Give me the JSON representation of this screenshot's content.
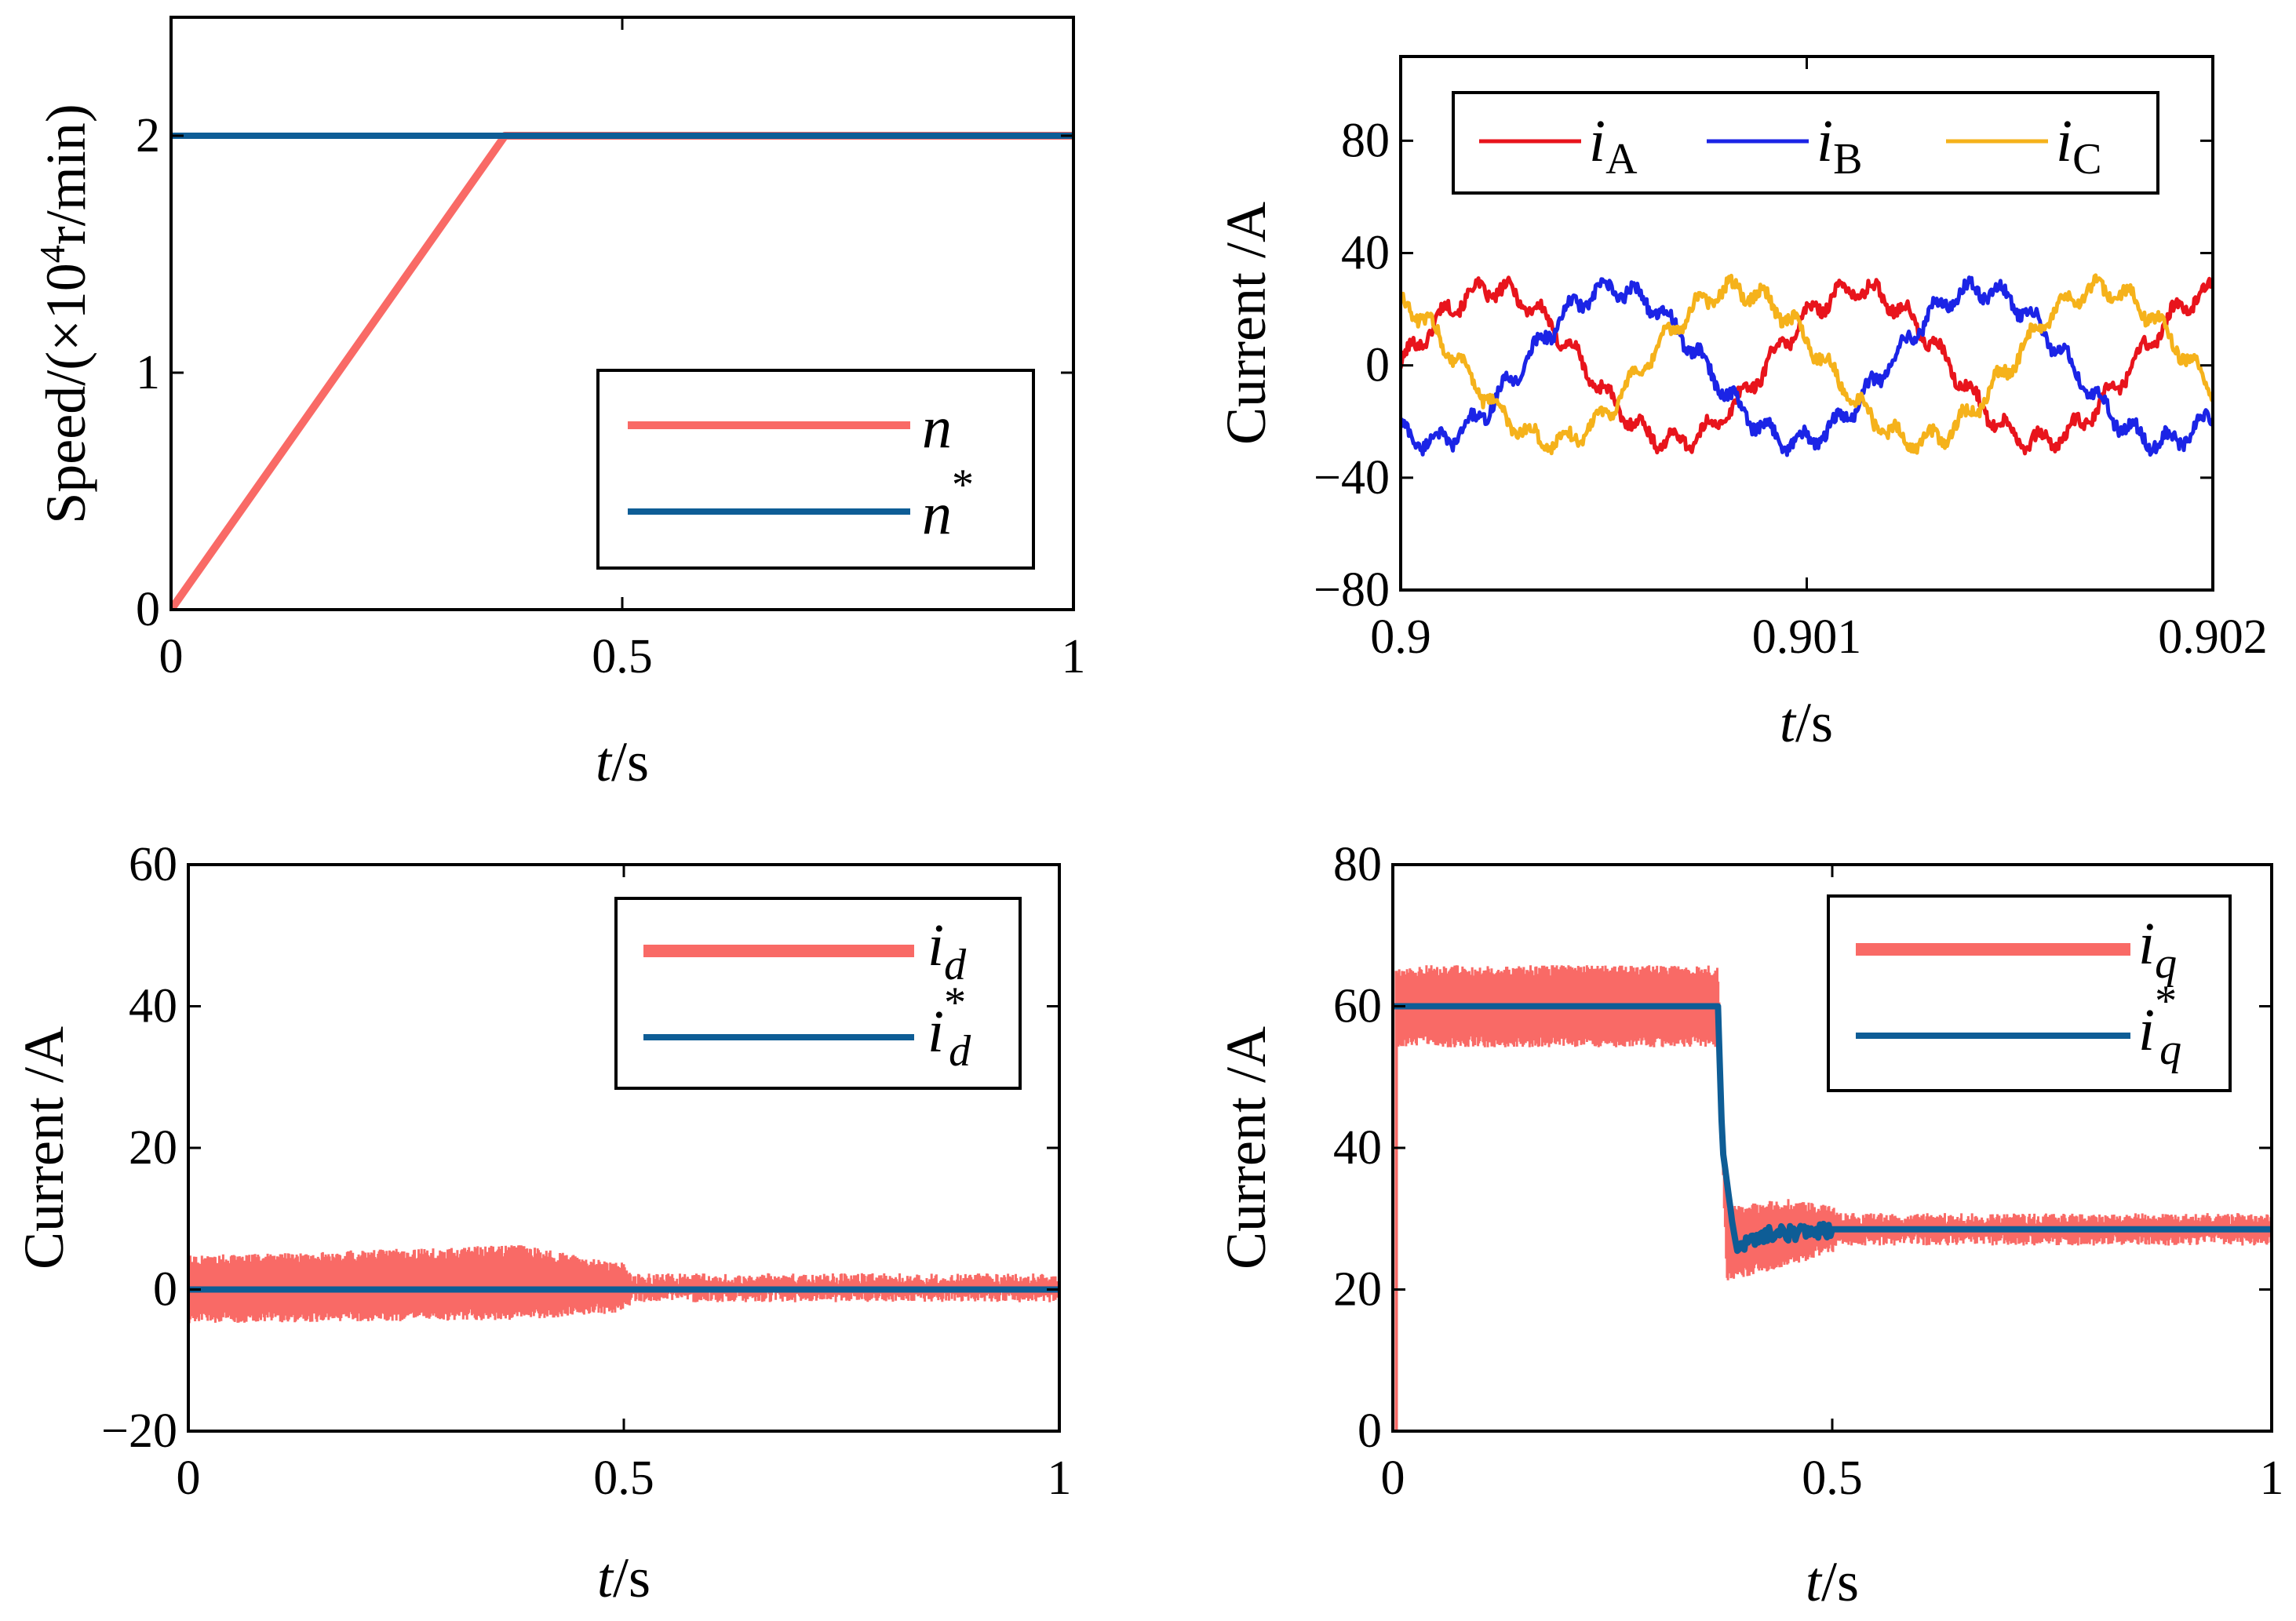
{
  "chart_data": [
    {
      "id": "speed",
      "type": "line",
      "xlabel_italic": "t",
      "xlabel_unit": "/s",
      "ylabel": "Speed/(×10",
      "ylabel_sup": "4",
      "ylabel_tail": "r/min)",
      "xlim": [
        0,
        1
      ],
      "ylim": [
        0,
        2.5
      ],
      "xticks": [
        0,
        0.5,
        1
      ],
      "xtick_labels": [
        "0",
        "0.5",
        "1"
      ],
      "yticks": [
        0,
        1,
        2
      ],
      "ytick_labels": [
        "0",
        "1",
        "2"
      ],
      "grid": false,
      "legend_position": "lower-right",
      "series": [
        {
          "name": "n",
          "legend_base": "n",
          "legend_sup": "",
          "legend_sub": "",
          "color": "#f96a66",
          "width": 10,
          "x": [
            0,
            0.37,
            0.4,
            1
          ],
          "y": [
            0,
            2.0,
            2.0,
            2.0
          ]
        },
        {
          "name": "n*",
          "legend_base": "n",
          "legend_sup": "*",
          "legend_sub": "",
          "color": "#0e5d96",
          "width": 8,
          "x": [
            0,
            1
          ],
          "y": [
            2,
            2
          ]
        }
      ]
    },
    {
      "id": "phase",
      "type": "line",
      "xlabel_italic": "t",
      "xlabel_unit": "/s",
      "ylabel": "Current /A",
      "xlim": [
        0.9,
        0.902
      ],
      "ylim": [
        -80,
        110
      ],
      "xticks": [
        0.9,
        0.901,
        0.902
      ],
      "xtick_labels": [
        "0.9",
        "0.901",
        "0.902"
      ],
      "yticks": [
        -80,
        -40,
        0,
        40,
        80
      ],
      "ytick_labels": [
        "−80",
        "−40",
        "0",
        "40",
        "80"
      ],
      "grid": false,
      "legend_position": "top",
      "amplitude": 27,
      "period": 0.0009,
      "series": [
        {
          "name": "iA",
          "legend_base": "i",
          "legend_sup": "",
          "legend_sub": "A",
          "color": "#e8141c",
          "phase_deg": 0
        },
        {
          "name": "iB",
          "legend_base": "i",
          "legend_sup": "",
          "legend_sub": "B",
          "color": "#1b24e6",
          "phase_deg": -120
        },
        {
          "name": "iC",
          "legend_base": "i",
          "legend_sup": "",
          "legend_sub": "C",
          "color": "#f5b21b",
          "phase_deg": 120
        }
      ]
    },
    {
      "id": "id",
      "type": "line",
      "xlabel_italic": "t",
      "xlabel_unit": "/s",
      "ylabel": "Current /A",
      "xlim": [
        0,
        1
      ],
      "ylim": [
        -20,
        60
      ],
      "xticks": [
        0,
        0.5,
        1
      ],
      "xtick_labels": [
        "0",
        "0.5",
        "1"
      ],
      "yticks": [
        -20,
        0,
        20,
        40,
        60
      ],
      "ytick_labels": [
        "−20",
        "0",
        "20",
        "40",
        "60"
      ],
      "grid": false,
      "legend_position": "top-right",
      "series": [
        {
          "name": "id",
          "legend_base": "i",
          "legend_sup": "",
          "legend_sub": "d",
          "color": "#f96a66",
          "band": true,
          "x": [
            0,
            0.38,
            0.5,
            0.51,
            1
          ],
          "upper": [
            4,
            5.5,
            3,
            1.5,
            1.5
          ],
          "lower": [
            -4,
            -3.5,
            -2.5,
            -1,
            -1
          ]
        },
        {
          "name": "id*",
          "legend_base": "i",
          "legend_sup": "*",
          "legend_sub": "d",
          "color": "#0e5d96",
          "width": 8,
          "x": [
            0,
            1
          ],
          "y": [
            0,
            0
          ]
        }
      ]
    },
    {
      "id": "iq",
      "type": "line",
      "xlabel_italic": "t",
      "xlabel_unit": "/s",
      "ylabel": "Current /A",
      "xlim": [
        0,
        1
      ],
      "ylim": [
        0,
        80
      ],
      "xticks": [
        0,
        0.5,
        1
      ],
      "xtick_labels": [
        "0",
        "0.5",
        "1"
      ],
      "yticks": [
        0,
        20,
        40,
        60,
        80
      ],
      "ytick_labels": [
        "0",
        "20",
        "40",
        "60",
        "80"
      ],
      "grid": false,
      "legend_position": "top-right",
      "series": [
        {
          "name": "iq",
          "legend_base": "i",
          "legend_sup": "",
          "legend_sub": "q",
          "color": "#f96a66",
          "band": true,
          "x": [
            0.004,
            0.37,
            0.38,
            0.45,
            0.5,
            0.51,
            1
          ],
          "upper": [
            65,
            65,
            31,
            32,
            31,
            30,
            30
          ],
          "lower": [
            55,
            55,
            22,
            24,
            26,
            27,
            27
          ]
        },
        {
          "name": "iq*",
          "legend_base": "i",
          "legend_sup": "*",
          "legend_sub": "q",
          "color": "#0e5d96",
          "width": 8,
          "x": [
            0,
            0.37,
            0.375,
            0.39,
            0.41,
            0.43,
            0.45,
            0.5,
            1
          ],
          "y": [
            60,
            60,
            40,
            26,
            27,
            28,
            28,
            28.5,
            28.5
          ]
        }
      ]
    }
  ]
}
